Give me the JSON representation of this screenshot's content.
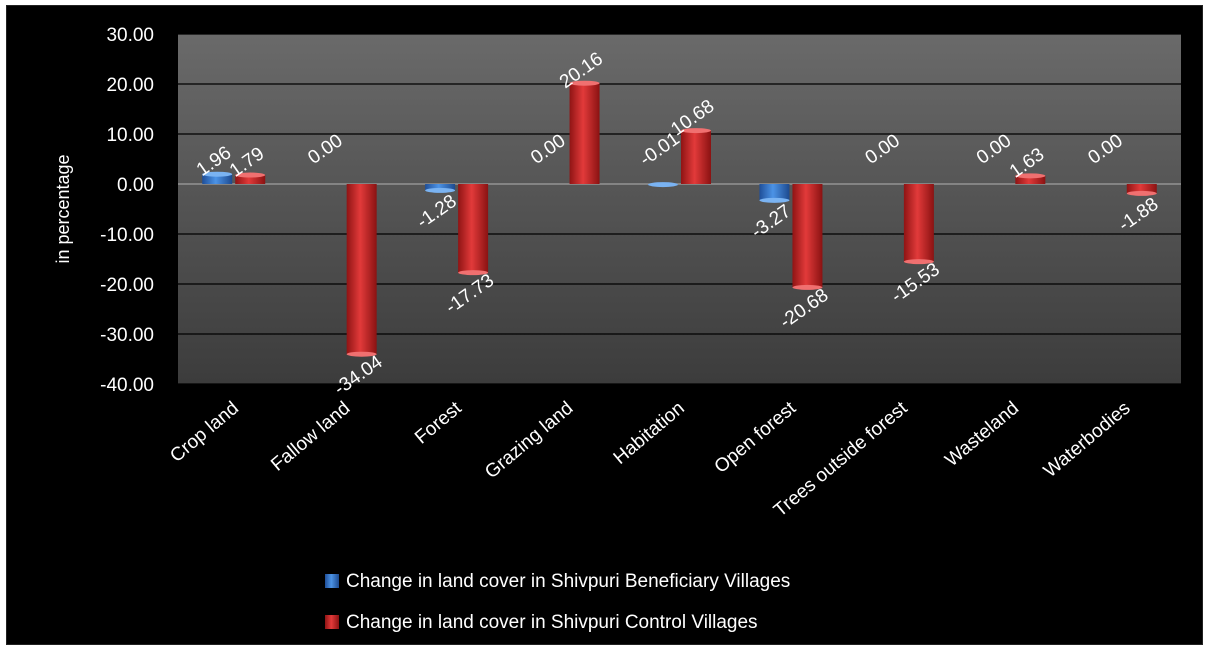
{
  "chart_data": {
    "type": "bar",
    "ylabel": "in percentage",
    "ylim": [
      -40,
      30
    ],
    "ytick_step": 10,
    "ytick_labels": [
      "30.00",
      "20.00",
      "10.00",
      "0.00",
      "-10.00",
      "-20.00",
      "-30.00",
      "-40.00"
    ],
    "grid": true,
    "legend_position": "bottom",
    "categories": [
      "Crop land",
      "Fallow land",
      "Forest",
      "Grazing land",
      "Habitation",
      "Open forest",
      "Trees outside forest",
      "Wasteland",
      "Waterbodies"
    ],
    "series": [
      {
        "name": "Change in land cover in Shivpuri Beneficiary Villages",
        "color": "#3b7fd4",
        "values": [
          1.96,
          0.0,
          -1.28,
          0.0,
          -0.01,
          -3.27,
          0.0,
          0.0,
          0.0
        ],
        "labels": [
          "1.96",
          "0.00",
          "-1.28",
          "0.00",
          "-0.01",
          "-3.27",
          "0.00",
          "0.00",
          "0.00"
        ]
      },
      {
        "name": "Change in land cover in Shivpuri Control Villages",
        "color": "#d42a2a",
        "values": [
          1.79,
          -34.04,
          -17.73,
          20.16,
          10.68,
          -20.68,
          -15.53,
          1.63,
          -1.88
        ],
        "labels": [
          "1.79",
          "-34.04",
          "-17.73",
          "20.16",
          "10.68",
          "-20.68",
          "-15.53",
          "1.63",
          "-1.88"
        ]
      }
    ]
  }
}
